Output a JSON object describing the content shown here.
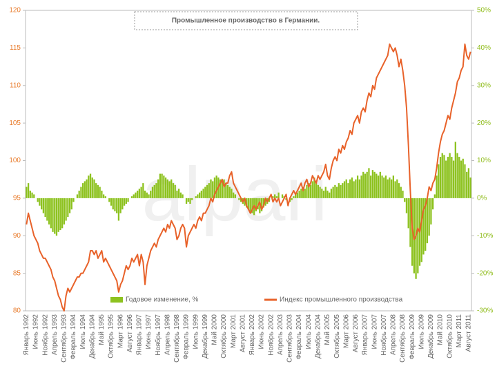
{
  "chart_data": {
    "type": "combo",
    "title": "Промышленное производство в Германии.",
    "watermark": "alpari",
    "categories": [
      "Январь 1992",
      null,
      null,
      null,
      null,
      "Июнь 1992",
      null,
      null,
      null,
      null,
      "Ноябрь 1992",
      null,
      null,
      null,
      null,
      "Апрель 1993",
      null,
      null,
      null,
      null,
      "Сентябрь 1993",
      null,
      null,
      null,
      null,
      "Февраль 1994",
      null,
      null,
      null,
      null,
      "Июль 1994",
      null,
      null,
      null,
      null,
      "Декабрь 1994",
      null,
      null,
      null,
      null,
      "Май 1995",
      null,
      null,
      null,
      null,
      "Октябрь 1995",
      null,
      null,
      null,
      null,
      "Март 1996",
      null,
      null,
      null,
      null,
      "Август 1996",
      null,
      null,
      null,
      null,
      "Январь 1997",
      null,
      null,
      null,
      null,
      "Июнь 1997",
      null,
      null,
      null,
      null,
      "Ноябрь 1997",
      null,
      null,
      null,
      null,
      "Апрель 1998",
      null,
      null,
      null,
      null,
      "Сентябрь 1998",
      null,
      null,
      null,
      null,
      "Февраль 1999",
      null,
      null,
      null,
      null,
      "Июль 1999",
      null,
      null,
      null,
      null,
      "Декабрь 1999",
      null,
      null,
      null,
      null,
      "Май 2000",
      null,
      null,
      null,
      null,
      "Октябрь 2000",
      null,
      null,
      null,
      null,
      "Март 2001",
      null,
      null,
      null,
      null,
      "Август 2001",
      null,
      null,
      null,
      null,
      "Январь 2002",
      null,
      null,
      null,
      null,
      "Июнь 2002",
      null,
      null,
      null,
      null,
      "Ноябрь 2002",
      null,
      null,
      null,
      null,
      "Апрель 2003",
      null,
      null,
      null,
      null,
      "Сентябрь 2003",
      null,
      null,
      null,
      null,
      "Февраль 2004",
      null,
      null,
      null,
      null,
      "Июль 2004",
      null,
      null,
      null,
      null,
      "Декабрь 2004",
      null,
      null,
      null,
      null,
      "Май 2005",
      null,
      null,
      null,
      null,
      "Октябрь 2005",
      null,
      null,
      null,
      null,
      "Март 2006",
      null,
      null,
      null,
      null,
      "Август 2006",
      null,
      null,
      null,
      null,
      "Январь 2007",
      null,
      null,
      null,
      null,
      "Июнь 2007",
      null,
      null,
      null,
      null,
      "Ноябрь 2007",
      null,
      null,
      null,
      null,
      "Апрель 2008",
      null,
      null,
      null,
      null,
      "Сентябрь 2008",
      null,
      null,
      null,
      null,
      "Февраль 2009",
      null,
      null,
      null,
      null,
      "Июль 2009",
      null,
      null,
      null,
      null,
      "Декабрь 2009",
      null,
      null,
      null,
      null,
      "Май 2010",
      null,
      null,
      null,
      null,
      "Октябрь 2010",
      null,
      null,
      null,
      null,
      "Март 2011",
      null,
      null,
      null,
      null,
      "Август 2011",
      null
    ],
    "series": [
      {
        "name": "Годовое изменение, %",
        "type": "bar",
        "axis": "y2",
        "color": "#8dc21f",
        "values": [
          3,
          4,
          2,
          1.5,
          1,
          0,
          -1,
          -2,
          -3,
          -4,
          -5,
          -6,
          -7,
          -8,
          -9,
          -9.5,
          -10,
          -9,
          -8.5,
          -8,
          -7,
          -6,
          -5,
          -4,
          -3,
          -1,
          0,
          1,
          2,
          3,
          4,
          4.5,
          5,
          6,
          6.5,
          5.5,
          5,
          4,
          3.5,
          3,
          2,
          1,
          0.5,
          0,
          -1,
          -2,
          -3,
          -3.5,
          -4,
          -6,
          -4,
          -3,
          -2,
          -1.5,
          -1,
          0,
          0.5,
          1,
          1.5,
          2,
          2.5,
          3,
          4,
          2,
          1.5,
          1,
          2,
          3,
          3.5,
          4,
          5,
          6.5,
          6.5,
          6,
          5.5,
          5,
          4.5,
          5,
          4,
          3.5,
          2,
          2.5,
          1.5,
          1,
          0,
          -1.5,
          -1,
          -1.5,
          -0.5,
          0,
          0.5,
          1,
          1.5,
          2,
          2.5,
          3,
          3.5,
          4,
          5,
          4.5,
          5.5,
          6,
          5.5,
          5,
          4.5,
          5,
          4,
          3.5,
          3,
          2.5,
          1.5,
          1,
          0,
          -0.5,
          -1,
          -1.5,
          -2,
          -2.5,
          -3,
          -3.5,
          -4,
          -4.5,
          -3.5,
          -3,
          -4,
          -3.5,
          -2.5,
          -2,
          -1.5,
          -1,
          0,
          0.5,
          1,
          0.5,
          1.5,
          0,
          1,
          0.5,
          -0.5,
          0,
          -1,
          -0.5,
          0.5,
          1,
          1.5,
          2,
          2.5,
          3,
          2.5,
          3.5,
          4,
          3.5,
          4.5,
          5.5,
          4,
          3.5,
          3,
          2.5,
          2,
          3,
          2,
          1.5,
          2.5,
          3,
          3.5,
          3,
          4,
          3.5,
          4,
          4.5,
          5,
          4,
          5,
          5.5,
          4.5,
          5,
          6,
          5,
          6,
          7,
          6.5,
          7,
          8,
          6,
          7.5,
          7,
          6.5,
          6,
          7,
          6,
          5.5,
          6,
          5,
          5.5,
          5,
          6,
          4.5,
          5,
          4,
          3,
          2,
          -1,
          -4,
          -8,
          -13,
          -18,
          -20,
          -21.5,
          -20,
          -18,
          -17,
          -15,
          -14,
          -12,
          -10,
          -7,
          -3,
          1,
          6,
          9,
          11,
          12,
          11.5,
          10,
          11,
          12,
          11,
          10,
          15,
          12,
          11,
          10,
          10.5,
          9,
          7,
          8,
          5.5
        ]
      },
      {
        "name": "Индекс промышленного производства",
        "type": "line",
        "color": "#e8622a",
        "values": [
          91.5,
          93,
          92,
          91,
          90,
          89.5,
          89,
          88,
          87.5,
          87,
          87,
          86.5,
          86,
          85.5,
          84.5,
          84,
          83,
          82,
          81.5,
          80.5,
          80,
          82,
          83,
          82.5,
          83,
          83.5,
          84,
          84.5,
          84.5,
          85,
          85,
          85.5,
          86,
          86.5,
          88,
          88,
          87.5,
          88,
          87,
          87.5,
          88,
          86.5,
          87,
          86.5,
          86,
          85.5,
          85,
          84.5,
          84,
          82.5,
          83.5,
          84,
          85,
          86,
          85.5,
          86,
          87,
          86.5,
          87,
          87.5,
          86,
          87.5,
          86.5,
          83.5,
          86,
          87,
          88,
          88.5,
          89,
          88.5,
          89.5,
          90,
          90.5,
          91,
          90.5,
          91.5,
          91,
          92,
          91.5,
          91,
          89.5,
          90,
          91,
          91.5,
          91,
          88.5,
          90,
          90.5,
          91,
          91.5,
          91,
          92,
          92.5,
          92,
          93,
          93,
          93.5,
          94,
          95,
          94.5,
          95.5,
          96,
          96.5,
          97,
          97.5,
          96.5,
          97,
          97,
          98,
          98.5,
          97,
          96.5,
          96,
          95.5,
          95,
          94.5,
          95,
          94,
          93.5,
          93,
          93.5,
          94,
          93.5,
          94,
          94.5,
          93.5,
          94,
          95,
          94.5,
          95,
          95.5,
          94.5,
          95,
          94.5,
          95,
          94,
          94.5,
          95,
          95.5,
          94,
          95,
          95.5,
          96,
          95.5,
          96,
          96.5,
          97,
          96,
          97,
          97.5,
          96.5,
          97,
          98,
          97.5,
          97,
          98,
          97.5,
          98,
          98.5,
          99.5,
          98,
          97.5,
          99,
          100,
          100.5,
          100,
          101.5,
          101,
          102,
          101.5,
          102.5,
          103,
          104,
          103.5,
          105,
          105.5,
          106,
          105,
          106.5,
          107,
          106.5,
          108,
          109,
          108.5,
          110,
          109.5,
          111,
          111.5,
          112,
          112.5,
          113,
          113.5,
          114,
          115.5,
          115,
          114.5,
          115,
          114,
          112.5,
          113.5,
          112,
          110,
          107,
          102,
          96,
          91,
          89.5,
          90,
          91,
          90.5,
          92,
          93.5,
          94,
          95,
          96.5,
          96,
          97,
          97.5,
          99,
          101,
          102.5,
          103.5,
          104,
          105,
          106,
          105.5,
          107,
          108,
          109,
          110.5,
          111,
          112,
          112.5,
          115.5,
          114,
          113.5,
          114.5
        ]
      }
    ],
    "ylim": [
      80,
      120
    ],
    "yticks": [
      80,
      85,
      90,
      95,
      100,
      105,
      110,
      115,
      120
    ],
    "y2lim": [
      -30,
      50
    ],
    "y2ticks": [
      {
        "value": -30,
        "label": "-30%"
      },
      {
        "value": -20,
        "label": "-20%"
      },
      {
        "value": -10,
        "label": "-10%"
      },
      {
        "value": 0,
        "label": "0%"
      },
      {
        "value": 10,
        "label": "10%"
      },
      {
        "value": 20,
        "label": "20%"
      },
      {
        "value": 30,
        "label": "30%"
      },
      {
        "value": 40,
        "label": "40%"
      },
      {
        "value": 50,
        "label": "50%"
      }
    ],
    "grid": false,
    "legend": "bottom"
  }
}
